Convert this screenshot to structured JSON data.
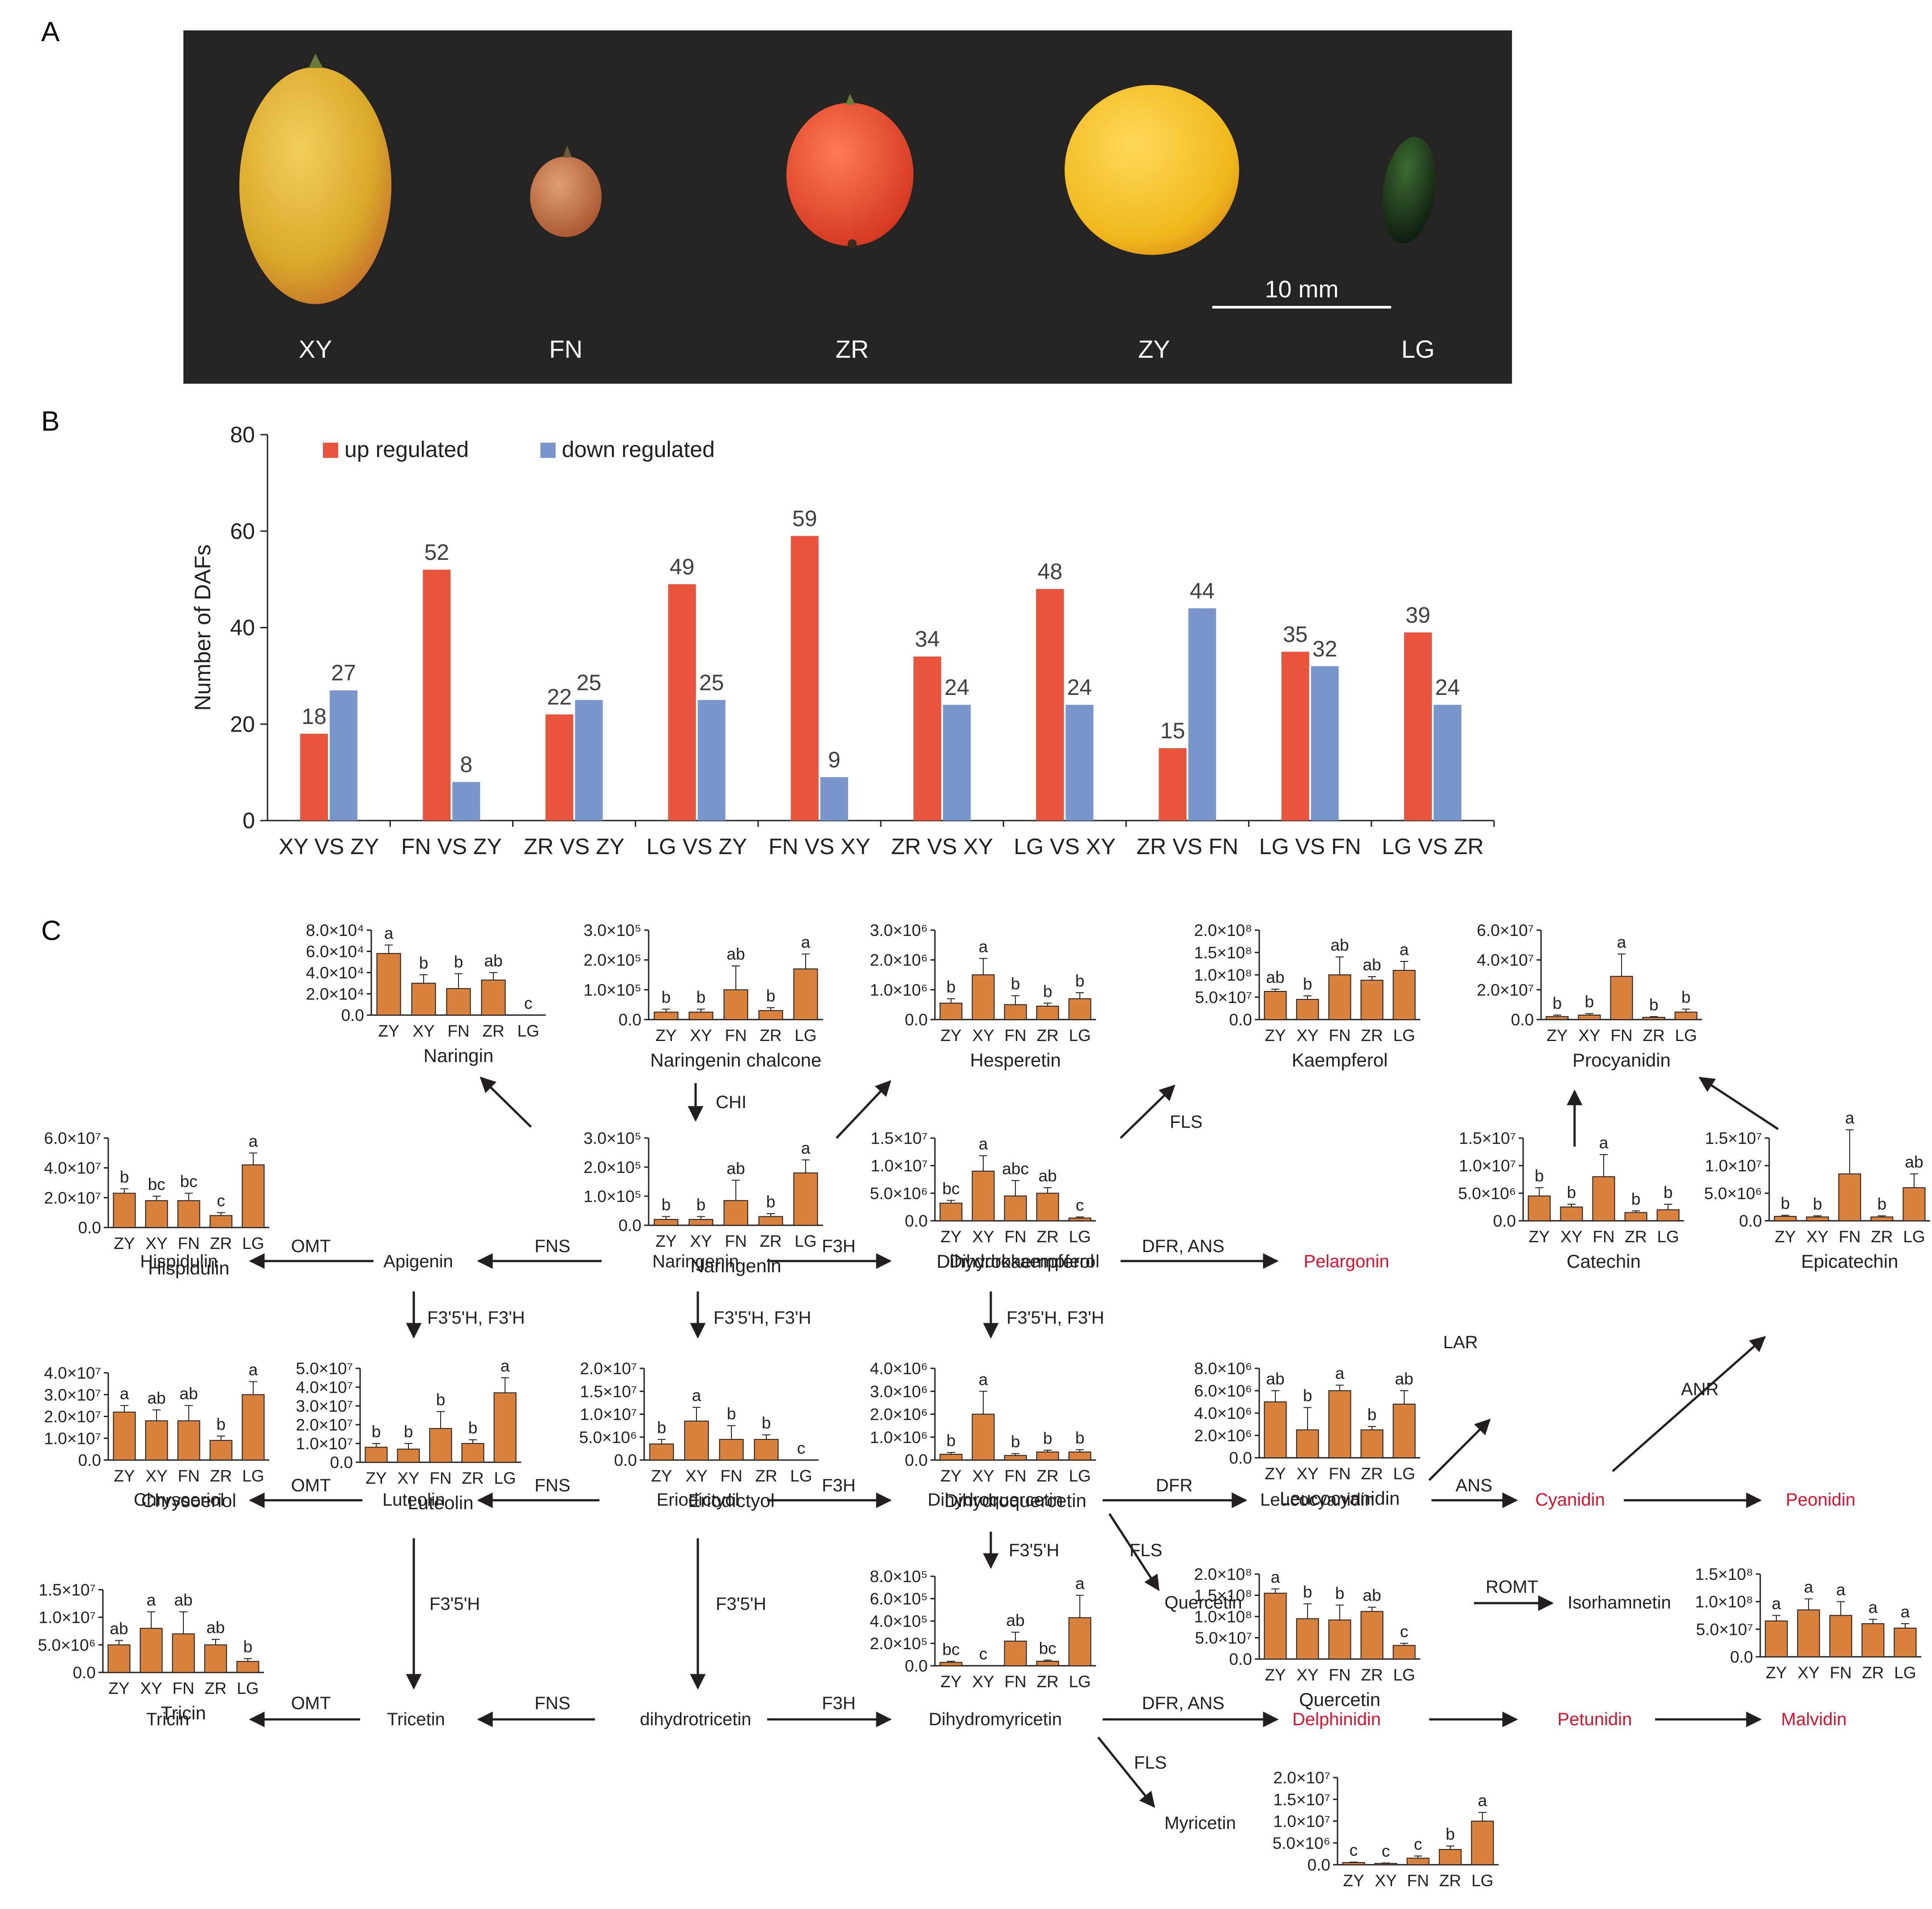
{
  "panel_labels": {
    "a": "A",
    "b": "B",
    "c": "C"
  },
  "panel_a": {
    "fruits": [
      {
        "label": "XY",
        "color": "#d8a82a"
      },
      {
        "label": "FN",
        "color": "#c2764a"
      },
      {
        "label": "ZR",
        "color": "#e54a2a"
      },
      {
        "label": "ZY",
        "color": "#f0b81c"
      },
      {
        "label": "LG",
        "color": "#1f3a1c"
      }
    ],
    "scale_bar_label": "10 mm"
  },
  "chart_data": [
    {
      "type": "bar",
      "id": "daf-counts",
      "title": "",
      "xlabel": "",
      "ylabel": "Number of DAFs",
      "ylim": [
        0,
        80
      ],
      "yticks": [
        "0",
        "20",
        "40",
        "60",
        "80"
      ],
      "legend_position": "top-left",
      "categories": [
        "XY VS ZY",
        "FN VS ZY",
        "ZR VS ZY",
        "LG VS ZY",
        "FN VS XY",
        "ZR VS XY",
        "LG VS XY",
        "ZR VS FN",
        "LG VS FN",
        "LG VS ZR"
      ],
      "series": [
        {
          "name": "up regulated",
          "color": "#e8533b",
          "values": [
            18,
            52,
            22,
            49,
            59,
            34,
            48,
            15,
            35,
            39
          ]
        },
        {
          "name": "down regulated",
          "color": "#7896cc",
          "values": [
            27,
            8,
            25,
            25,
            9,
            24,
            24,
            44,
            32,
            24
          ]
        }
      ]
    },
    {
      "type": "bar",
      "id": "naringin",
      "title": "Naringin",
      "categories": [
        "ZY",
        "XY",
        "FN",
        "ZR",
        "LG"
      ],
      "ylim": [
        0,
        80000
      ],
      "yticks": [
        "0.0",
        "2.0×10⁴",
        "4.0×10⁴",
        "6.0×10⁴",
        "8.0×10⁴"
      ],
      "values": [
        58000,
        30000,
        25000,
        33000,
        0
      ],
      "errors": [
        8000,
        8000,
        14000,
        7000,
        0
      ],
      "letters": [
        "a",
        "b",
        "b",
        "ab",
        "c"
      ]
    },
    {
      "type": "bar",
      "id": "naringenin-chalcone",
      "title": "Naringenin chalcone",
      "categories": [
        "ZY",
        "XY",
        "FN",
        "ZR",
        "LG"
      ],
      "ylim": [
        0,
        300000
      ],
      "yticks": [
        "0.0",
        "1.0×10⁵",
        "2.0×10⁵",
        "3.0×10⁵"
      ],
      "values": [
        25000,
        25000,
        100000,
        30000,
        170000
      ],
      "errors": [
        10000,
        10000,
        80000,
        10000,
        50000
      ],
      "letters": [
        "b",
        "b",
        "ab",
        "b",
        "a"
      ]
    },
    {
      "type": "bar",
      "id": "hesperetin",
      "title": "Hesperetin",
      "categories": [
        "ZY",
        "XY",
        "FN",
        "ZR",
        "LG"
      ],
      "ylim": [
        0,
        3000000
      ],
      "yticks": [
        "0.0",
        "1.0×10⁶",
        "2.0×10⁶",
        "3.0×10⁶"
      ],
      "values": [
        550000,
        1500000,
        500000,
        450000,
        700000
      ],
      "errors": [
        150000,
        550000,
        300000,
        100000,
        200000
      ],
      "letters": [
        "b",
        "a",
        "b",
        "b",
        "b"
      ]
    },
    {
      "type": "bar",
      "id": "kaempferol",
      "title": "Kaempferol",
      "categories": [
        "ZY",
        "XY",
        "FN",
        "ZR",
        "LG"
      ],
      "ylim": [
        0,
        200000000
      ],
      "yticks": [
        "0.0",
        "5.0×10⁷",
        "1.0×10⁸",
        "1.5×10⁸",
        "2.0×10⁸"
      ],
      "values": [
        63000000,
        45000000,
        100000000,
        88000000,
        110000000
      ],
      "errors": [
        5000000,
        8000000,
        40000000,
        8000000,
        20000000
      ],
      "letters": [
        "ab",
        "b",
        "ab",
        "ab",
        "a"
      ]
    },
    {
      "type": "bar",
      "id": "procyanidin",
      "title": "Procyanidin",
      "categories": [
        "ZY",
        "XY",
        "FN",
        "ZR",
        "LG"
      ],
      "ylim": [
        0,
        60000000
      ],
      "yticks": [
        "0.0",
        "2.0×10⁷",
        "4.0×10⁷",
        "6.0×10⁷"
      ],
      "values": [
        2000000,
        3000000,
        29000000,
        1500000,
        5000000
      ],
      "errors": [
        1000000,
        1000000,
        15000000,
        500000,
        2000000
      ],
      "letters": [
        "b",
        "b",
        "a",
        "b",
        "b"
      ]
    },
    {
      "type": "bar",
      "id": "hispidulin",
      "title": "Hispidulin",
      "categories": [
        "ZY",
        "XY",
        "FN",
        "ZR",
        "LG"
      ],
      "ylim": [
        0,
        60000000
      ],
      "yticks": [
        "0.0",
        "2.0×10⁷",
        "4.0×10⁷",
        "6.0×10⁷"
      ],
      "values": [
        23000000,
        18000000,
        18000000,
        8000000,
        42000000
      ],
      "errors": [
        3000000,
        3000000,
        5000000,
        2000000,
        8000000
      ],
      "letters": [
        "b",
        "bc",
        "bc",
        "c",
        "a"
      ]
    },
    {
      "type": "bar",
      "id": "naringenin",
      "title": "Naringenin",
      "categories": [
        "ZY",
        "XY",
        "FN",
        "ZR",
        "LG"
      ],
      "ylim": [
        0,
        300000
      ],
      "yticks": [
        "0.0",
        "1.0×10⁵",
        "2.0×10⁵",
        "3.0×10⁵"
      ],
      "values": [
        20000,
        20000,
        85000,
        30000,
        180000
      ],
      "errors": [
        10000,
        10000,
        70000,
        10000,
        45000
      ],
      "letters": [
        "b",
        "b",
        "ab",
        "b",
        "a"
      ]
    },
    {
      "type": "bar",
      "id": "dihydrokaempferol",
      "title": "Dihydrokaempferol",
      "categories": [
        "ZY",
        "XY",
        "FN",
        "ZR",
        "LG"
      ],
      "ylim": [
        0,
        15000000
      ],
      "yticks": [
        "0.0",
        "5.0×10⁶",
        "1.0×10⁷",
        "1.5×10⁷"
      ],
      "values": [
        3200000,
        9000000,
        4500000,
        5000000,
        500000
      ],
      "errors": [
        500000,
        2800000,
        2800000,
        1000000,
        200000
      ],
      "letters": [
        "bc",
        "a",
        "abc",
        "ab",
        "c"
      ]
    },
    {
      "type": "bar",
      "id": "catechin",
      "title": "Catechin",
      "categories": [
        "ZY",
        "XY",
        "FN",
        "ZR",
        "LG"
      ],
      "ylim": [
        0,
        15000000
      ],
      "yticks": [
        "0.0",
        "5.0×10⁶",
        "1.0×10⁷",
        "1.5×10⁷"
      ],
      "values": [
        4500000,
        2500000,
        8000000,
        1500000,
        2000000
      ],
      "errors": [
        1500000,
        500000,
        4000000,
        300000,
        1000000
      ],
      "letters": [
        "b",
        "b",
        "a",
        "b",
        "b"
      ]
    },
    {
      "type": "bar",
      "id": "epicatechin",
      "title": "Epicatechin",
      "categories": [
        "ZY",
        "XY",
        "FN",
        "ZR",
        "LG"
      ],
      "ylim": [
        0,
        15000000
      ],
      "yticks": [
        "0.0",
        "5.0×10⁶",
        "1.0×10⁷",
        "1.5×10⁷"
      ],
      "values": [
        800000,
        700000,
        8500000,
        700000,
        6000000
      ],
      "errors": [
        200000,
        200000,
        8000000,
        200000,
        2500000
      ],
      "letters": [
        "b",
        "b",
        "a",
        "b",
        "ab"
      ]
    },
    {
      "type": "bar",
      "id": "chrysoeriol",
      "title": "Chrysoeriol",
      "categories": [
        "ZY",
        "XY",
        "FN",
        "ZR",
        "LG"
      ],
      "ylim": [
        0,
        40000000
      ],
      "yticks": [
        "0.0",
        "1.0×10⁷",
        "2.0×10⁷",
        "3.0×10⁷",
        "4.0×10⁷"
      ],
      "values": [
        22000000,
        18000000,
        18000000,
        9000000,
        30000000
      ],
      "errors": [
        3000000,
        5000000,
        7000000,
        2000000,
        6000000
      ],
      "letters": [
        "a",
        "ab",
        "ab",
        "b",
        "a"
      ]
    },
    {
      "type": "bar",
      "id": "luteolin",
      "title": "Luteolin",
      "categories": [
        "ZY",
        "XY",
        "FN",
        "ZR",
        "LG"
      ],
      "ylim": [
        0,
        50000000
      ],
      "yticks": [
        "0.0",
        "1.0×10⁷",
        "2.0×10⁷",
        "3.0×10⁷",
        "4.0×10⁷",
        "5.0×10⁷"
      ],
      "values": [
        8000000,
        7000000,
        18000000,
        10000000,
        37000000
      ],
      "errors": [
        2000000,
        3000000,
        9000000,
        2000000,
        8000000
      ],
      "letters": [
        "b",
        "b",
        "b",
        "b",
        "a"
      ]
    },
    {
      "type": "bar",
      "id": "eriodictyol",
      "title": "Eriodictyol",
      "categories": [
        "ZY",
        "XY",
        "FN",
        "ZR",
        "LG"
      ],
      "ylim": [
        0,
        20000000
      ],
      "yticks": [
        "0.0",
        "5.0×10⁶",
        "1.0×10⁷",
        "1.5×10⁷",
        "2.0×10⁷"
      ],
      "values": [
        3500000,
        8500000,
        4500000,
        4500000,
        0
      ],
      "errors": [
        1000000,
        3000000,
        3000000,
        1000000,
        0
      ],
      "letters": [
        "b",
        "a",
        "b",
        "b",
        "c"
      ]
    },
    {
      "type": "bar",
      "id": "dihydroquercetin",
      "title": "Dihydroquercetin",
      "categories": [
        "ZY",
        "XY",
        "FN",
        "ZR",
        "LG"
      ],
      "ylim": [
        0,
        4000000
      ],
      "yticks": [
        "0.0",
        "1.0×10⁶",
        "2.0×10⁶",
        "3.0×10⁶",
        "4.0×10⁶"
      ],
      "values": [
        250000,
        2000000,
        200000,
        350000,
        350000
      ],
      "errors": [
        80000,
        1000000,
        80000,
        80000,
        100000
      ],
      "letters": [
        "b",
        "a",
        "b",
        "b",
        "b"
      ]
    },
    {
      "type": "bar",
      "id": "leucocyanidin",
      "title": "Leucocyanidin",
      "categories": [
        "ZY",
        "XY",
        "FN",
        "ZR",
        "LG"
      ],
      "ylim": [
        0,
        8000000
      ],
      "yticks": [
        "0.0",
        "2.0×10⁶",
        "4.0×10⁶",
        "6.0×10⁶",
        "8.0×10⁶"
      ],
      "values": [
        5000000,
        2500000,
        6000000,
        2500000,
        4800000
      ],
      "errors": [
        1000000,
        2000000,
        500000,
        300000,
        1200000
      ],
      "letters": [
        "ab",
        "b",
        "a",
        "b",
        "ab"
      ]
    },
    {
      "type": "bar",
      "id": "tricin",
      "title": "Tricin",
      "categories": [
        "ZY",
        "XY",
        "FN",
        "ZR",
        "LG"
      ],
      "ylim": [
        0,
        15000000
      ],
      "yticks": [
        "0.0",
        "5.0×10⁶",
        "1.0×10⁷",
        "1.5×10⁷"
      ],
      "values": [
        5000000,
        8000000,
        7000000,
        5000000,
        2000000
      ],
      "errors": [
        800000,
        3000000,
        4000000,
        1000000,
        500000
      ],
      "letters": [
        "ab",
        "a",
        "ab",
        "ab",
        "b"
      ]
    },
    {
      "type": "bar",
      "id": "quercetin",
      "title": "Quercetin",
      "categories": [
        "ZY",
        "XY",
        "FN",
        "ZR",
        "LG"
      ],
      "ylim": [
        0,
        200000000
      ],
      "yticks": [
        "0.0",
        "5.0×10⁷",
        "1.0×10⁸",
        "1.5×10⁸",
        "2.0×10⁸"
      ],
      "values": [
        155000000,
        95000000,
        92000000,
        112000000,
        32000000
      ],
      "errors": [
        10000000,
        35000000,
        35000000,
        10000000,
        5000000
      ],
      "letters": [
        "a",
        "b",
        "b",
        "ab",
        "c"
      ]
    },
    {
      "type": "bar",
      "id": "isorhamnetin",
      "title": "",
      "categories": [
        "ZY",
        "XY",
        "FN",
        "ZR",
        "LG"
      ],
      "ylim": [
        0,
        150000000
      ],
      "yticks": [
        "0.0",
        "5.0×10⁷",
        "1.0×10⁸",
        "1.5×10⁸"
      ],
      "values": [
        65000000,
        85000000,
        75000000,
        60000000,
        52000000
      ],
      "errors": [
        10000000,
        20000000,
        25000000,
        8000000,
        8000000
      ],
      "letters": [
        "a",
        "a",
        "a",
        "a",
        "a"
      ]
    },
    {
      "type": "bar",
      "id": "dihydromyricetin",
      "title": "",
      "categories": [
        "ZY",
        "XY",
        "FN",
        "ZR",
        "LG"
      ],
      "ylim": [
        0,
        800000
      ],
      "yticks": [
        "0.0",
        "2.0×10⁵",
        "4.0×10⁵",
        "6.0×10⁵",
        "8.0×10⁵"
      ],
      "values": [
        30000,
        0,
        220000,
        40000,
        430000
      ],
      "errors": [
        10000,
        0,
        80000,
        10000,
        200000
      ],
      "letters": [
        "bc",
        "c",
        "ab",
        "bc",
        "a"
      ]
    },
    {
      "type": "bar",
      "id": "myricetin",
      "title": "",
      "categories": [
        "ZY",
        "XY",
        "FN",
        "ZR",
        "LG"
      ],
      "ylim": [
        0,
        20000000
      ],
      "yticks": [
        "0.0",
        "5.0×10⁶",
        "1.0×10⁷",
        "1.5×10⁷",
        "2.0×10⁷"
      ],
      "values": [
        500000,
        300000,
        1500000,
        3500000,
        10000000
      ],
      "errors": [
        100000,
        100000,
        500000,
        800000,
        2000000
      ],
      "letters": [
        "c",
        "c",
        "c",
        "b",
        "a"
      ]
    }
  ],
  "pathway": {
    "compounds": {
      "hispidulin": "Hispidulin",
      "apigenin": "Apigenin",
      "naringenin": "Naringenin",
      "dihydrokaempferol": "Dihydrokaempferol",
      "pelargonin": "Pelargonin",
      "chrysoeriol": "Chrysoeriol",
      "luteolin": "Luteolin",
      "eriodictyol": "Eriodictyol",
      "dihydroquercetin": "Dihydroquercetin",
      "leucocyanidin": "Leucocyanidin",
      "cyanidin": "Cyanidin",
      "peonidin": "Peonidin",
      "quercetin": "Quercetin",
      "isorhamnetin": "Isorhamnetin",
      "tricin": "Tricin",
      "tricetin": "Tricetin",
      "dihydrotricetin": "dihydrotricetin",
      "dihydromyricetin": "Dihydromyricetin",
      "delphinidin": "Delphinidin",
      "petunidin": "Petunidin",
      "malvidin": "Malvidin",
      "myricetin": "Myricetin"
    },
    "enzymes": {
      "chi": "CHI",
      "fls1": "FLS",
      "omt1": "OMT",
      "fns1": "FNS",
      "f3h1": "F3H",
      "dfr_ans1": "DFR, ANS",
      "f35h_f3h_1": "F3'5'H, F3'H",
      "f35h_f3h_2": "F3'5'H, F3'H",
      "f35h_f3h_3": "F3'5'H, F3'H",
      "lar": "LAR",
      "anr": "ANR",
      "omt2": "OMT",
      "fns2": "FNS",
      "f3h2": "F3H",
      "dfr": "DFR",
      "ans": "ANS",
      "f35h_1": "F3'5'H",
      "fls2": "FLS",
      "romt": "ROMT",
      "f35h_2": "F3'5'H",
      "f35h_3": "F3'5'H",
      "omt3": "OMT",
      "fns3": "FNS",
      "f3h3": "F3H",
      "dfr_ans2": "DFR, ANS",
      "fls3": "FLS"
    },
    "anthocyanin_color": "#d7142b"
  }
}
